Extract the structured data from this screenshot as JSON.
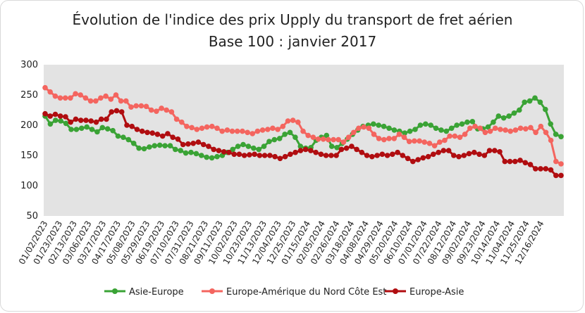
{
  "chart_data": {
    "type": "line",
    "title": "Évolution de l'indice des prix Upply du transport de fret aérien",
    "subtitle": "Base 100 : janvier 2017",
    "ylim": [
      50,
      300
    ],
    "yticks": [
      300,
      250,
      200,
      150,
      100,
      50
    ],
    "grid": false,
    "legend_position": "bottom",
    "x_tick_labels": [
      "01/02/2023",
      "01/23/2023",
      "02/13/2023",
      "03/06/2023",
      "03/27/2023",
      "04/17/2023",
      "05/08/2023",
      "05/29/2023",
      "06/19/2023",
      "07/10/2023",
      "07/31/2023",
      "08/21/2023",
      "09/11/2023",
      "10/02/2023",
      "10/23/2023",
      "11/13/2023",
      "12/04/2023",
      "12/25/2023",
      "01/15/2024",
      "02/05/2024",
      "02/26/2024",
      "03/18/2024",
      "04/08/2024",
      "04/29/2024",
      "05/20/2024",
      "06/10/2024",
      "07/01/2024",
      "07/22/2024",
      "08/12/2024",
      "09/02/2024",
      "09/23/2024",
      "10/14/2024",
      "11/04/2024",
      "11/25/2024",
      "12/16/2024"
    ],
    "series": [
      {
        "name": "Asie-Europe",
        "color": "#3aa335",
        "values": [
          215,
          202,
          208,
          207,
          203,
          193,
          193,
          195,
          197,
          193,
          189,
          196,
          194,
          191,
          182,
          180,
          176,
          170,
          162,
          161,
          164,
          166,
          167,
          166,
          166,
          160,
          158,
          154,
          155,
          153,
          150,
          147,
          146,
          148,
          150,
          155,
          160,
          165,
          168,
          165,
          162,
          160,
          165,
          173,
          176,
          178,
          185,
          188,
          180,
          165,
          162,
          163,
          175,
          180,
          183,
          165,
          163,
          170,
          177,
          185,
          192,
          198,
          200,
          202,
          200,
          198,
          195,
          192,
          190,
          187,
          190,
          193,
          200,
          202,
          200,
          195,
          192,
          190,
          195,
          200,
          202,
          205,
          206,
          194,
          194,
          197,
          205,
          215,
          212,
          215,
          220,
          225,
          238,
          240,
          245,
          238,
          226,
          202,
          185,
          181
        ]
      },
      {
        "name": "Europe-Amérique du Nord Côte Est",
        "color": "#f4655f",
        "values": [
          262,
          255,
          248,
          245,
          245,
          245,
          252,
          250,
          245,
          240,
          240,
          245,
          248,
          243,
          250,
          240,
          240,
          230,
          232,
          232,
          231,
          225,
          223,
          228,
          225,
          222,
          210,
          205,
          198,
          196,
          193,
          195,
          197,
          198,
          195,
          190,
          192,
          190,
          190,
          190,
          188,
          186,
          190,
          192,
          193,
          195,
          193,
          198,
          207,
          208,
          205,
          190,
          183,
          180,
          177,
          177,
          176,
          176,
          176,
          172,
          180,
          188,
          195,
          197,
          195,
          185,
          178,
          176,
          178,
          178,
          185,
          180,
          173,
          174,
          174,
          172,
          170,
          166,
          172,
          175,
          182,
          182,
          180,
          185,
          195,
          198,
          195,
          188,
          190,
          195,
          193,
          192,
          190,
          192,
          195,
          194,
          196,
          188,
          198,
          188,
          175,
          140,
          136
        ]
      },
      {
        "name": "Europe-Asie",
        "color": "#b00d10",
        "values": [
          219,
          215,
          218,
          215,
          214,
          205,
          210,
          208,
          208,
          207,
          205,
          210,
          210,
          222,
          224,
          222,
          200,
          198,
          193,
          190,
          188,
          187,
          185,
          182,
          186,
          180,
          177,
          168,
          169,
          170,
          172,
          168,
          165,
          160,
          158,
          156,
          155,
          152,
          152,
          150,
          151,
          152,
          150,
          150,
          150,
          148,
          145,
          148,
          152,
          155,
          158,
          160,
          158,
          155,
          152,
          150,
          150,
          150,
          160,
          162,
          165,
          160,
          155,
          150,
          148,
          150,
          152,
          150,
          152,
          155,
          150,
          145,
          140,
          143,
          146,
          148,
          152,
          155,
          158,
          158,
          150,
          148,
          150,
          153,
          155,
          152,
          150,
          158,
          158,
          156,
          140,
          140,
          140,
          142,
          138,
          135,
          128,
          128,
          128,
          126,
          117,
          117
        ]
      }
    ]
  }
}
